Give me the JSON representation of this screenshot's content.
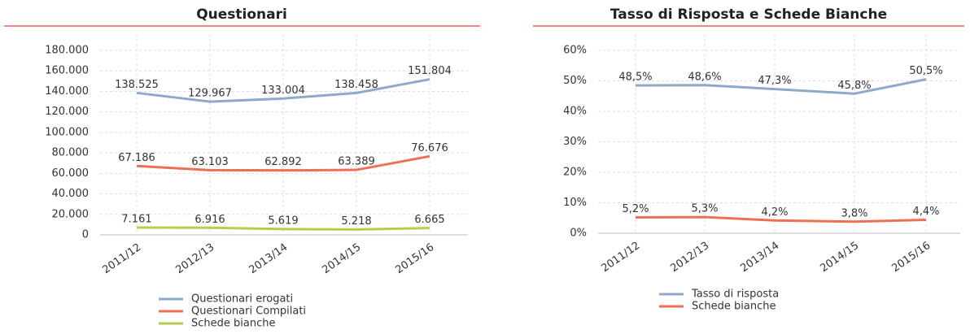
{
  "chart_data": [
    {
      "type": "line",
      "title": "Questionari",
      "categories": [
        "2011/12",
        "2012/13",
        "2013/14",
        "2014/15",
        "2015/16"
      ],
      "ylim": [
        0,
        180000
      ],
      "yticks": [
        0,
        {
          "value": 20000,
          "label": "20.000"
        },
        {
          "value": 40000,
          "label": "40.000"
        },
        {
          "value": 60000,
          "label": "60.000"
        },
        {
          "value": 80000,
          "label": "80.000"
        },
        {
          "value": 100000,
          "label": "100.000"
        },
        {
          "value": 120000,
          "label": "120.000"
        },
        {
          "value": 140000,
          "label": "140.000"
        },
        {
          "value": 160000,
          "label": "160.000"
        },
        {
          "value": 180000,
          "label": "180.000"
        }
      ],
      "grid": true,
      "series": [
        {
          "name": "Questionari erogati",
          "color": "#8eaacb",
          "values": [
            138525,
            129967,
            133004,
            138458,
            151804
          ],
          "value_labels": [
            "138.525",
            "129.967",
            "133.004",
            "138.458",
            "151.804"
          ]
        },
        {
          "name": "Questionari Compilati",
          "color": "#ef6f55",
          "values": [
            67186,
            63103,
            62892,
            63389,
            76676
          ],
          "value_labels": [
            "67.186",
            "63.103",
            "62.892",
            "63.389",
            "76.676"
          ]
        },
        {
          "name": "Schede bianche",
          "color": "#b5cf4a",
          "values": [
            7161,
            6916,
            5619,
            5218,
            6665
          ],
          "value_labels": [
            "7.161",
            "6.916",
            "5.619",
            "5.218",
            "6.665"
          ]
        }
      ]
    },
    {
      "type": "line",
      "title": "Tasso di Risposta e Schede Bianche",
      "categories": [
        "2011/12",
        "2012/13",
        "2013/14",
        "2014/15",
        "2015/16"
      ],
      "ylim": [
        0,
        60
      ],
      "yticks": [
        {
          "value": 0,
          "label": "0%"
        },
        {
          "value": 10,
          "label": "10%"
        },
        {
          "value": 20,
          "label": "20%"
        },
        {
          "value": 30,
          "label": "30%"
        },
        {
          "value": 40,
          "label": "40%"
        },
        {
          "value": 50,
          "label": "50%"
        },
        {
          "value": 60,
          "label": "60%"
        }
      ],
      "grid": true,
      "series": [
        {
          "name": "Tasso di risposta",
          "color": "#8eaacb",
          "values": [
            48.5,
            48.6,
            47.3,
            45.8,
            50.5
          ],
          "value_labels": [
            "48,5%",
            "48,6%",
            "47,3%",
            "45,8%",
            "50,5%"
          ]
        },
        {
          "name": "Schede bianche",
          "color": "#ef6f55",
          "values": [
            5.2,
            5.3,
            4.2,
            3.8,
            4.4
          ],
          "value_labels": [
            "5,2%",
            "5,3%",
            "4,2%",
            "3,8%",
            "4,4%"
          ]
        }
      ]
    }
  ]
}
